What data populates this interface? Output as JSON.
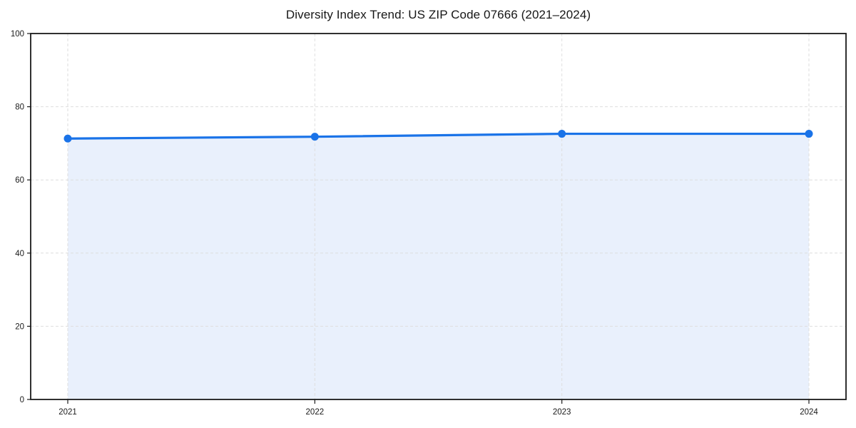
{
  "chart_data": {
    "type": "line",
    "title": "Diversity Index Trend: US ZIP Code 07666 (2021–2024)",
    "categories": [
      "2021",
      "2022",
      "2023",
      "2024"
    ],
    "series": [
      {
        "name": "Diversity Index",
        "values": [
          71.3,
          71.8,
          72.6,
          72.6
        ]
      }
    ],
    "xlabel": "",
    "ylabel": "",
    "ylim": [
      0,
      100
    ],
    "y_ticks": [
      0,
      20,
      40,
      60,
      80,
      100
    ],
    "grid": true,
    "grid_style": "dashed",
    "legend": false,
    "marker": "circle",
    "area_fill_between": [
      "2021",
      "2024"
    ],
    "colors": {
      "line": "#1a73e8",
      "marker": "#1a73e8",
      "area_fill": "#e9f0fc",
      "grid": "#dedede",
      "axis": "#1a1a1a",
      "text": "#1a1a1a",
      "background": "#ffffff"
    }
  }
}
